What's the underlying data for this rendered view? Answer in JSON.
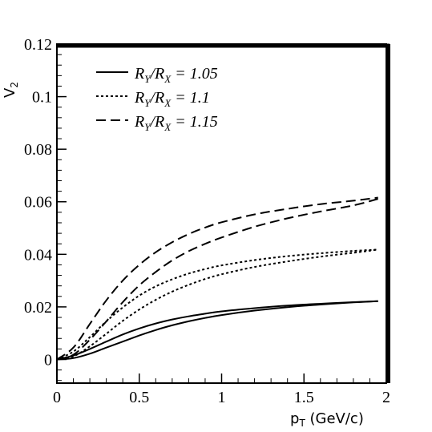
{
  "chart_data": {
    "type": "line",
    "title": "",
    "xlabel": "p_T (GeV/c)",
    "ylabel": "V_2",
    "xlim": [
      0,
      2
    ],
    "ylim": [
      -0.009,
      0.12
    ],
    "x_ticks": [
      "0",
      "0.5",
      "1",
      "1.5",
      "2"
    ],
    "y_ticks": [
      "0",
      "0.02",
      "0.04",
      "0.06",
      "0.08",
      "0.1",
      "0.12"
    ],
    "legend_position": "top-left",
    "legend": [
      {
        "ratio": "1.05",
        "style": "solid"
      },
      {
        "ratio": "1.1",
        "style": "dotted"
      },
      {
        "ratio": "1.15",
        "style": "dashed"
      }
    ],
    "series": [
      {
        "name": "R_Y/R_X = 1.05 (upper)",
        "style": "solid",
        "x": [
          0,
          0.1,
          0.2,
          0.3,
          0.4,
          0.5,
          0.6,
          0.7,
          0.8,
          0.9,
          1.0,
          1.2,
          1.4,
          1.6,
          1.8,
          1.95
        ],
        "y": [
          0,
          0.0015,
          0.004,
          0.0068,
          0.0095,
          0.0118,
          0.0137,
          0.0152,
          0.0164,
          0.0174,
          0.0183,
          0.0195,
          0.0205,
          0.0212,
          0.0218,
          0.0222
        ]
      },
      {
        "name": "R_Y/R_X = 1.05 (lower)",
        "style": "solid",
        "x": [
          0,
          0.1,
          0.2,
          0.3,
          0.4,
          0.5,
          0.6,
          0.7,
          0.8,
          0.9,
          1.0,
          1.2,
          1.4,
          1.6,
          1.8,
          1.95
        ],
        "y": [
          0,
          0.0005,
          0.0022,
          0.0045,
          0.0068,
          0.0091,
          0.0112,
          0.013,
          0.0145,
          0.0158,
          0.0169,
          0.0186,
          0.0199,
          0.0209,
          0.0217,
          0.0222
        ]
      },
      {
        "name": "R_Y/R_X = 1.1 (upper)",
        "style": "dotted",
        "x": [
          0,
          0.1,
          0.2,
          0.3,
          0.4,
          0.5,
          0.6,
          0.7,
          0.8,
          0.9,
          1.0,
          1.2,
          1.4,
          1.6,
          1.8,
          1.95
        ],
        "y": [
          0,
          0.003,
          0.0085,
          0.0145,
          0.0198,
          0.0243,
          0.0278,
          0.0305,
          0.0327,
          0.0344,
          0.0358,
          0.0378,
          0.0393,
          0.0404,
          0.0413,
          0.0418
        ]
      },
      {
        "name": "R_Y/R_X = 1.1 (lower)",
        "style": "dotted",
        "x": [
          0,
          0.1,
          0.2,
          0.3,
          0.4,
          0.5,
          0.6,
          0.7,
          0.8,
          0.9,
          1.0,
          1.2,
          1.4,
          1.6,
          1.8,
          1.95
        ],
        "y": [
          0,
          0.0012,
          0.005,
          0.0098,
          0.0147,
          0.019,
          0.0227,
          0.0258,
          0.0284,
          0.0306,
          0.0324,
          0.0352,
          0.0373,
          0.0391,
          0.0406,
          0.0418
        ]
      },
      {
        "name": "R_Y/R_X = 1.15 (upper)",
        "style": "dashed",
        "x": [
          0,
          0.1,
          0.2,
          0.3,
          0.4,
          0.5,
          0.6,
          0.7,
          0.8,
          0.9,
          1.0,
          1.2,
          1.4,
          1.6,
          1.8,
          1.95
        ],
        "y": [
          0,
          0.0045,
          0.0135,
          0.0225,
          0.03,
          0.036,
          0.0408,
          0.0446,
          0.0477,
          0.0502,
          0.0522,
          0.0552,
          0.0573,
          0.0591,
          0.0604,
          0.0616
        ]
      },
      {
        "name": "R_Y/R_X = 1.15 (lower)",
        "style": "dashed",
        "x": [
          0,
          0.1,
          0.2,
          0.3,
          0.4,
          0.5,
          0.6,
          0.7,
          0.8,
          0.9,
          1.0,
          1.2,
          1.4,
          1.6,
          1.8,
          1.95
        ],
        "y": [
          0,
          0.0018,
          0.0075,
          0.0145,
          0.0218,
          0.0282,
          0.0333,
          0.0377,
          0.0412,
          0.044,
          0.0464,
          0.0505,
          0.0537,
          0.0563,
          0.0586,
          0.0611
        ]
      }
    ]
  }
}
